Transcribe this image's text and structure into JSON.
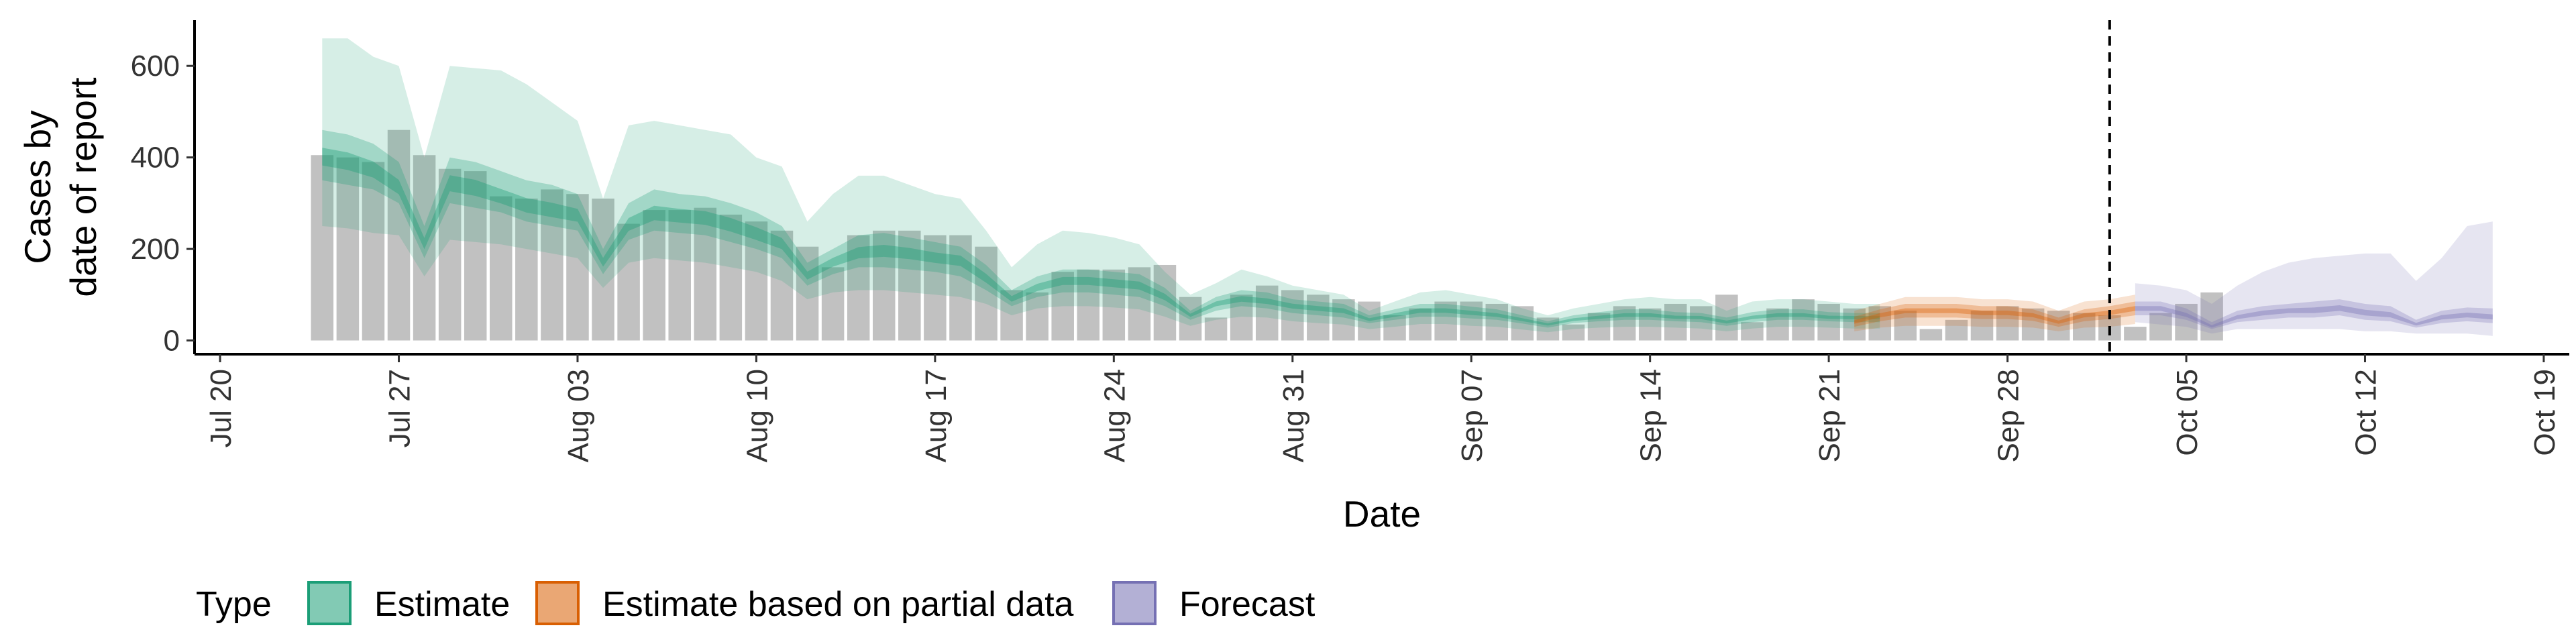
{
  "chart_data": {
    "type": "bar",
    "xlabel": "Date",
    "ylabel_lines": [
      "Cases by",
      "date of report"
    ],
    "ylim": [
      -30,
      700
    ],
    "xlim": [
      "2020-07-19",
      "2020-10-20"
    ],
    "y_ticks": [
      0,
      200,
      400,
      600
    ],
    "x_ticks": [
      {
        "date": "2020-07-20",
        "label": "Jul 20"
      },
      {
        "date": "2020-07-27",
        "label": "Jul 27"
      },
      {
        "date": "2020-08-03",
        "label": "Aug 03"
      },
      {
        "date": "2020-08-10",
        "label": "Aug 10"
      },
      {
        "date": "2020-08-17",
        "label": "Aug 17"
      },
      {
        "date": "2020-08-24",
        "label": "Aug 24"
      },
      {
        "date": "2020-08-31",
        "label": "Aug 31"
      },
      {
        "date": "2020-09-07",
        "label": "Sep 07"
      },
      {
        "date": "2020-09-14",
        "label": "Sep 14"
      },
      {
        "date": "2020-09-21",
        "label": "Sep 21"
      },
      {
        "date": "2020-09-28",
        "label": "Sep 28"
      },
      {
        "date": "2020-10-05",
        "label": "Oct 05"
      },
      {
        "date": "2020-10-12",
        "label": "Oct 12"
      },
      {
        "date": "2020-10-19",
        "label": "Oct 19"
      }
    ],
    "forecast_date": "2020-10-02",
    "bars": {
      "start_date": "2020-07-24",
      "values": [
        405,
        400,
        390,
        460,
        405,
        375,
        370,
        315,
        310,
        330,
        320,
        310,
        255,
        285,
        285,
        290,
        275,
        260,
        240,
        205,
        160,
        230,
        240,
        240,
        230,
        230,
        205,
        110,
        105,
        150,
        155,
        155,
        160,
        165,
        95,
        50,
        100,
        120,
        110,
        100,
        90,
        85,
        55,
        70,
        85,
        85,
        80,
        75,
        50,
        35,
        60,
        75,
        70,
        80,
        75,
        100,
        40,
        70,
        90,
        80,
        70,
        75,
        65,
        25,
        45,
        65,
        75,
        70,
        65,
        60,
        55,
        30,
        60,
        80,
        105
      ]
    },
    "series": [
      {
        "name": "Estimate",
        "color": "#1b9e77",
        "start_date": "2020-07-24",
        "median": [
          400,
          390,
          370,
          330,
          210,
          340,
          330,
          310,
          290,
          280,
          270,
          170,
          250,
          275,
          270,
          265,
          250,
          230,
          210,
          140,
          170,
          190,
          195,
          190,
          180,
          175,
          135,
          90,
          115,
          130,
          130,
          125,
          120,
          95,
          55,
          80,
          90,
          85,
          75,
          70,
          65,
          45,
          55,
          65,
          65,
          60,
          55,
          45,
          35,
          45,
          50,
          55,
          55,
          50,
          50,
          40,
          50,
          55,
          55,
          50,
          50,
          50
        ],
        "lower_50": [
          350,
          340,
          330,
          300,
          180,
          300,
          290,
          280,
          260,
          250,
          240,
          145,
          220,
          240,
          235,
          230,
          215,
          200,
          180,
          120,
          145,
          160,
          160,
          155,
          150,
          140,
          110,
          75,
          95,
          105,
          105,
          100,
          95,
          75,
          45,
          65,
          75,
          70,
          60,
          55,
          50,
          38,
          45,
          52,
          52,
          48,
          45,
          37,
          28,
          38,
          42,
          45,
          45,
          42,
          40,
          32,
          40,
          45,
          45,
          42,
          40,
          40
        ],
        "upper_50": [
          460,
          450,
          430,
          390,
          250,
          400,
          390,
          370,
          350,
          340,
          320,
          200,
          300,
          330,
          320,
          315,
          300,
          280,
          250,
          170,
          200,
          230,
          235,
          225,
          215,
          205,
          165,
          110,
          140,
          155,
          155,
          150,
          145,
          115,
          65,
          95,
          110,
          105,
          90,
          85,
          80,
          55,
          68,
          80,
          80,
          74,
          68,
          55,
          42,
          55,
          62,
          68,
          68,
          62,
          60,
          50,
          62,
          68,
          68,
          62,
          60,
          60
        ],
        "lower_90": [
          250,
          245,
          235,
          230,
          140,
          220,
          215,
          210,
          200,
          190,
          180,
          115,
          170,
          180,
          175,
          170,
          160,
          150,
          130,
          90,
          105,
          110,
          110,
          105,
          100,
          95,
          80,
          55,
          70,
          75,
          75,
          72,
          68,
          52,
          32,
          45,
          52,
          50,
          42,
          38,
          35,
          25,
          30,
          36,
          36,
          32,
          30,
          24,
          18,
          25,
          28,
          30,
          30,
          28,
          26,
          20,
          26,
          30,
          30,
          28,
          26,
          26
        ],
        "upper_90": [
          660,
          660,
          620,
          600,
          400,
          600,
          595,
          590,
          560,
          520,
          480,
          310,
          470,
          480,
          470,
          460,
          450,
          400,
          380,
          260,
          320,
          360,
          360,
          340,
          320,
          310,
          240,
          160,
          210,
          240,
          235,
          225,
          210,
          150,
          100,
          125,
          155,
          140,
          120,
          110,
          100,
          65,
          85,
          105,
          110,
          100,
          90,
          70,
          55,
          70,
          80,
          90,
          95,
          90,
          90,
          65,
          85,
          90,
          90,
          85,
          80,
          80
        ]
      },
      {
        "name": "Estimate based on partial data",
        "color": "#d95f02",
        "start_date": "2020-09-22",
        "median": [
          40,
          55,
          65,
          65,
          65,
          60,
          60,
          55,
          40,
          55,
          60,
          70
        ],
        "lower_50": [
          30,
          42,
          50,
          50,
          50,
          47,
          47,
          43,
          30,
          42,
          47,
          55
        ],
        "upper_50": [
          52,
          68,
          80,
          80,
          80,
          75,
          75,
          68,
          50,
          68,
          75,
          85
        ],
        "lower_90": [
          20,
          28,
          32,
          32,
          32,
          30,
          30,
          28,
          20,
          28,
          30,
          36
        ],
        "upper_90": [
          65,
          80,
          95,
          95,
          95,
          90,
          90,
          85,
          65,
          85,
          90,
          100
        ]
      },
      {
        "name": "Forecast",
        "color": "#7570b3",
        "start_date": "2020-10-03",
        "median": [
          70,
          70,
          55,
          30,
          50,
          60,
          65,
          65,
          70,
          60,
          55,
          35,
          50,
          55,
          50
        ],
        "lower_50": [
          55,
          55,
          45,
          25,
          40,
          45,
          50,
          50,
          55,
          45,
          42,
          28,
          38,
          42,
          38
        ],
        "upper_50": [
          85,
          85,
          70,
          40,
          65,
          75,
          80,
          85,
          90,
          80,
          75,
          45,
          65,
          72,
          70
        ],
        "lower_90": [
          40,
          35,
          30,
          15,
          25,
          25,
          25,
          25,
          25,
          20,
          20,
          15,
          15,
          15,
          10
        ],
        "upper_90": [
          125,
          120,
          110,
          80,
          120,
          150,
          170,
          180,
          185,
          190,
          190,
          130,
          180,
          250,
          260
        ]
      }
    ],
    "legend": {
      "title": "Type",
      "position": "bottom",
      "items": [
        {
          "label": "Estimate",
          "color": "#1b9e77"
        },
        {
          "label": "Estimate based on partial data",
          "color": "#d95f02"
        },
        {
          "label": "Forecast",
          "color": "#7570b3"
        }
      ]
    },
    "grid": false
  }
}
